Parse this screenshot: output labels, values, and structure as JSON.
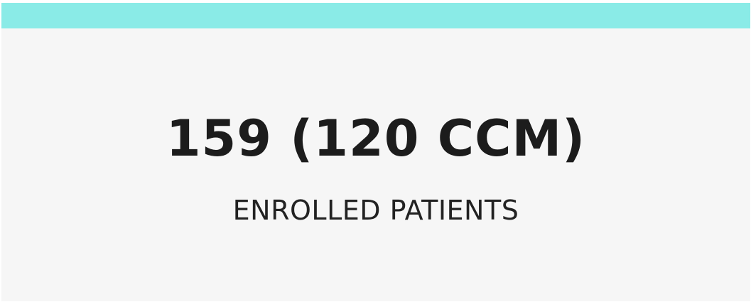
{
  "card": {
    "value": "159 (120 CCM)",
    "label": "ENROLLED PATIENTS"
  }
}
